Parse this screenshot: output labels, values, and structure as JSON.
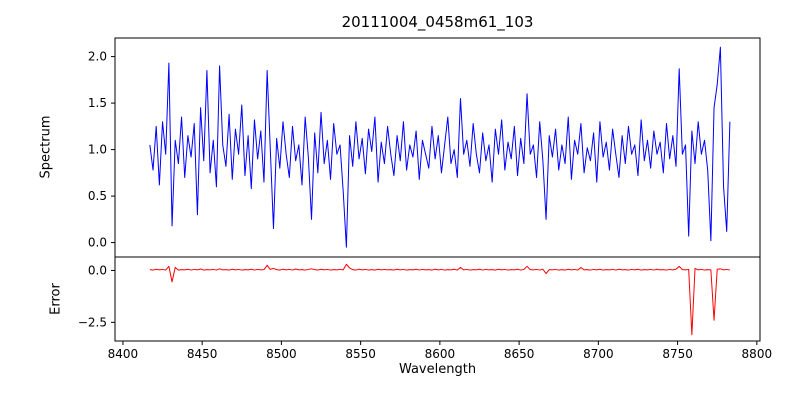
{
  "chart_data": {
    "type": "line",
    "title": "20111004_0458m61_103",
    "xlabel": "Wavelength",
    "xlim": [
      8395,
      8802
    ],
    "x_start": 8417,
    "x_step": 2,
    "x_ticks": [
      {
        "v": 8400,
        "label": "8400"
      },
      {
        "v": 8450,
        "label": "8450"
      },
      {
        "v": 8500,
        "label": "8500"
      },
      {
        "v": 8550,
        "label": "8550"
      },
      {
        "v": 8600,
        "label": "8600"
      },
      {
        "v": 8650,
        "label": "8650"
      },
      {
        "v": 8700,
        "label": "8700"
      },
      {
        "v": 8750,
        "label": "8750"
      },
      {
        "v": 8800,
        "label": "8800"
      }
    ],
    "subplots": [
      {
        "name": "spectrum",
        "ylabel": "Spectrum",
        "color": "#0000ff",
        "ylim": [
          -0.155,
          2.2
        ],
        "y_ticks": [
          {
            "v": 0.0,
            "label": "0.0"
          },
          {
            "v": 0.5,
            "label": "0.5"
          },
          {
            "v": 1.0,
            "label": "1.0"
          },
          {
            "v": 1.5,
            "label": "1.5"
          },
          {
            "v": 2.0,
            "label": "2.0"
          }
        ],
        "values": [
          1.05,
          0.78,
          1.25,
          0.62,
          1.3,
          0.95,
          1.93,
          0.18,
          1.1,
          0.85,
          1.35,
          0.7,
          1.15,
          0.92,
          1.28,
          0.3,
          1.45,
          0.88,
          1.85,
          0.75,
          1.1,
          0.6,
          1.9,
          1.05,
          0.82,
          1.38,
          0.68,
          1.22,
          0.95,
          1.48,
          0.72,
          1.15,
          0.58,
          1.32,
          0.9,
          1.2,
          0.65,
          1.85,
          1.0,
          0.15,
          1.12,
          0.8,
          1.3,
          0.95,
          0.7,
          1.25,
          0.88,
          1.05,
          0.62,
          1.35,
          0.92,
          0.25,
          1.18,
          0.75,
          1.4,
          0.85,
          1.1,
          0.68,
          1.28,
          0.95,
          1.05,
          0.55,
          -0.05,
          1.15,
          0.82,
          1.3,
          0.9,
          1.12,
          0.74,
          1.22,
          0.98,
          1.35,
          0.65,
          1.08,
          0.85,
          1.25,
          0.95,
          0.72,
          1.15,
          0.88,
          1.3,
          0.78,
          1.05,
          0.92,
          1.2,
          0.68,
          1.1,
          0.95,
          0.8,
          1.25,
          0.9,
          1.15,
          0.75,
          1.05,
          1.35,
          0.85,
          1.0,
          0.7,
          1.55,
          0.95,
          1.1,
          0.82,
          1.28,
          0.95,
          0.75,
          1.18,
          0.88,
          1.05,
          0.65,
          1.22,
          0.95,
          1.32,
          0.78,
          1.08,
          0.9,
          1.25,
          0.72,
          1.12,
          0.85,
          1.6,
          0.95,
          1.05,
          0.7,
          1.3,
          0.88,
          0.25,
          1.15,
          0.92,
          1.22,
          0.78,
          1.05,
          0.85,
          1.35,
          0.68,
          1.1,
          0.95,
          1.28,
          0.75,
          1.02,
          0.88,
          1.18,
          0.65,
          1.3,
          0.92,
          1.08,
          0.78,
          1.22,
          0.95,
          0.7,
          1.15,
          0.85,
          1.25,
          0.95,
          1.05,
          0.72,
          1.32,
          0.88,
          1.1,
          0.8,
          1.2,
          0.95,
          1.08,
          0.75,
          1.28,
          0.9,
          1.15,
          0.82,
          1.87,
          0.95,
          1.05,
          0.07,
          1.2,
          0.85,
          1.3,
          0.95,
          1.1,
          0.78,
          0.02,
          1.45,
          1.7,
          2.1,
          0.6,
          0.12,
          1.3
        ]
      },
      {
        "name": "error",
        "ylabel": "Error",
        "color": "#ff0000",
        "ylim": [
          -3.4,
          0.65
        ],
        "y_ticks": [
          {
            "v": -2.5,
            "label": "−2.5"
          },
          {
            "v": 0.0,
            "label": "0.0"
          }
        ],
        "values": [
          0.04,
          0.02,
          0.06,
          0.03,
          0.05,
          0.02,
          0.2,
          -0.55,
          0.15,
          0.02,
          0.04,
          0.03,
          0.06,
          0.02,
          0.05,
          0.03,
          0.07,
          0.02,
          0.04,
          0.03,
          0.05,
          0.02,
          0.08,
          0.03,
          0.04,
          0.02,
          0.06,
          0.03,
          0.05,
          0.02,
          0.04,
          0.03,
          0.06,
          0.02,
          0.05,
          0.03,
          0.04,
          0.25,
          0.05,
          0.1,
          0.04,
          0.02,
          0.06,
          0.03,
          0.05,
          0.02,
          0.07,
          0.03,
          0.04,
          0.02,
          0.05,
          0.08,
          0.04,
          0.02,
          0.06,
          0.03,
          0.05,
          0.02,
          0.04,
          0.03,
          0.05,
          0.03,
          0.3,
          0.12,
          0.04,
          0.02,
          0.06,
          0.03,
          0.05,
          0.02,
          0.04,
          0.02,
          0.06,
          0.03,
          0.05,
          0.03,
          0.04,
          0.02,
          0.06,
          0.03,
          0.05,
          0.02,
          0.04,
          0.03,
          0.06,
          0.02,
          0.05,
          0.03,
          0.04,
          0.02,
          0.06,
          0.03,
          0.05,
          0.02,
          0.04,
          0.03,
          0.06,
          0.02,
          0.15,
          0.03,
          0.05,
          0.02,
          0.04,
          0.03,
          0.06,
          0.02,
          0.05,
          0.03,
          0.04,
          0.02,
          0.06,
          0.03,
          0.05,
          0.02,
          0.04,
          0.03,
          0.06,
          0.02,
          0.05,
          0.2,
          0.04,
          0.03,
          0.05,
          0.02,
          0.06,
          -0.15,
          0.04,
          0.03,
          0.05,
          0.02,
          0.04,
          0.02,
          0.06,
          0.03,
          0.05,
          0.02,
          0.14,
          0.03,
          0.04,
          0.02,
          0.05,
          0.03,
          0.06,
          0.02,
          0.04,
          0.03,
          0.05,
          0.02,
          0.06,
          0.03,
          0.04,
          0.02,
          0.05,
          0.03,
          0.06,
          0.02,
          0.04,
          0.03,
          0.05,
          0.02,
          0.06,
          0.03,
          0.04,
          0.02,
          0.05,
          0.03,
          0.06,
          0.2,
          0.04,
          0.03,
          0.05,
          -3.1,
          0.1,
          0.03,
          0.05,
          0.02,
          0.04,
          0.03,
          -2.4,
          0.06,
          0.08,
          0.03,
          0.05,
          0.02
        ]
      }
    ]
  }
}
